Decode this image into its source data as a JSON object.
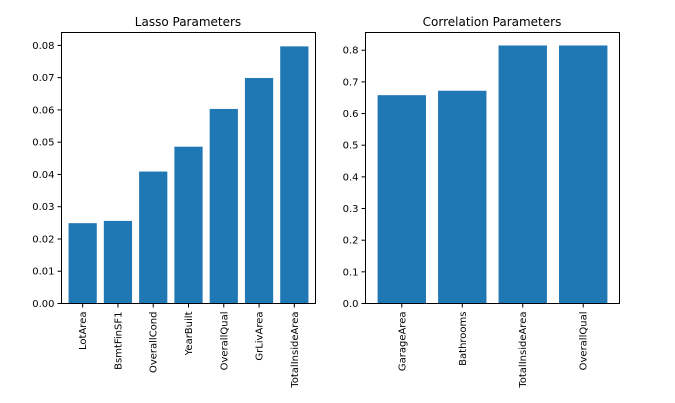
{
  "colors": {
    "bar": "#1f77b4",
    "background": "#ffffff",
    "axis": "#000000"
  },
  "chart_data": [
    {
      "type": "bar",
      "title": "Lasso Parameters",
      "xlabel": "",
      "ylabel": "",
      "categories": [
        "LotArea",
        "BsmtFinSF1",
        "OverallCond",
        "YearBuilt",
        "OverallQual",
        "GrLivArea",
        "TotalInsideArea"
      ],
      "values": [
        0.0249,
        0.0256,
        0.0409,
        0.0486,
        0.0603,
        0.0699,
        0.0797
      ],
      "ylim": [
        0,
        0.084
      ],
      "yticks": [
        "0.00",
        "0.01",
        "0.02",
        "0.03",
        "0.04",
        "0.05",
        "0.06",
        "0.07",
        "0.08"
      ],
      "grid": false,
      "legend": "none"
    },
    {
      "type": "bar",
      "title": "Correlation Parameters",
      "xlabel": "",
      "ylabel": "",
      "categories": [
        "GarageArea",
        "Bathrooms",
        "TotalInsideArea",
        "OverallQual"
      ],
      "values": [
        0.658,
        0.672,
        0.815,
        0.815
      ],
      "ylim": [
        0,
        0.856
      ],
      "yticks": [
        "0.0",
        "0.1",
        "0.2",
        "0.3",
        "0.4",
        "0.5",
        "0.6",
        "0.7",
        "0.8"
      ],
      "grid": false,
      "legend": "none"
    }
  ]
}
